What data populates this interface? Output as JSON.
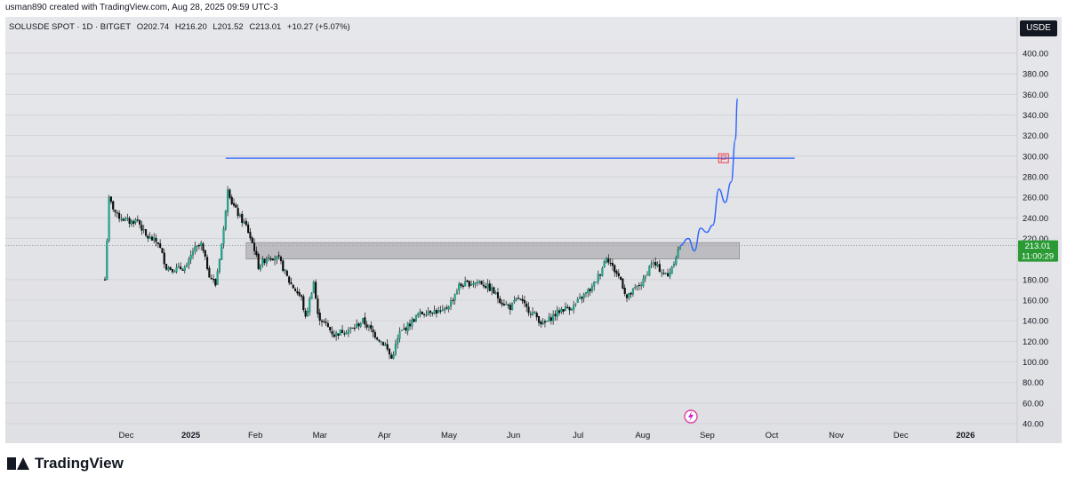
{
  "header": {
    "credit": "usman890 created with TradingView.com, Aug 28, 2025 09:59 UTC-3"
  },
  "legend": {
    "symbol": "SOLUSDE SPOT · 1D · BITGET",
    "open": "O202.74",
    "high": "H216.20",
    "low": "L201.52",
    "close": "C213.01",
    "change": "+10.27 (+5.07%)"
  },
  "currency_button": "USDE",
  "price_label": {
    "price": "213.01",
    "countdown": "11:00:29"
  },
  "footer": {
    "brand": "TradingView"
  },
  "colors": {
    "up": "#22ab94",
    "candle_body": "#0b0f0c",
    "projection": "#2962ff",
    "zone": "#9e9ea3",
    "target_flag": "#f23645",
    "price_tag": "#2a9a35"
  },
  "chart_data": {
    "type": "candlestick",
    "y_ticks": [
      40,
      60,
      80,
      100,
      120,
      140,
      160,
      180,
      220,
      240,
      260,
      280,
      300,
      320,
      340,
      360,
      380,
      400
    ],
    "ylim": [
      40,
      400
    ],
    "x_labels": [
      "Dec",
      "2025",
      "Feb",
      "Mar",
      "Apr",
      "May",
      "Jun",
      "Jul",
      "Aug",
      "Sep",
      "Oct",
      "Nov",
      "Dec",
      "2026"
    ],
    "x_start": "2024-11-20",
    "price_series": [
      [
        "2024-11-20",
        180
      ],
      [
        "2024-11-22",
        258
      ],
      [
        "2024-11-26",
        242
      ],
      [
        "2024-12-02",
        236
      ],
      [
        "2024-12-06",
        238
      ],
      [
        "2024-12-10",
        222
      ],
      [
        "2024-12-16",
        216
      ],
      [
        "2024-12-20",
        192
      ],
      [
        "2024-12-24",
        190
      ],
      [
        "2024-12-30",
        192
      ],
      [
        "2025-01-02",
        208
      ],
      [
        "2025-01-06",
        214
      ],
      [
        "2025-01-10",
        185
      ],
      [
        "2025-01-13",
        175
      ],
      [
        "2025-01-17",
        228
      ],
      [
        "2025-01-19",
        270
      ],
      [
        "2025-01-21",
        255
      ],
      [
        "2025-01-25",
        240
      ],
      [
        "2025-01-28",
        232
      ],
      [
        "2025-02-01",
        210
      ],
      [
        "2025-02-03",
        193
      ],
      [
        "2025-02-08",
        203
      ],
      [
        "2025-02-13",
        200
      ],
      [
        "2025-02-18",
        178
      ],
      [
        "2025-02-24",
        162
      ],
      [
        "2025-02-26",
        142
      ],
      [
        "2025-03-02",
        178
      ],
      [
        "2025-03-04",
        145
      ],
      [
        "2025-03-08",
        136
      ],
      [
        "2025-03-12",
        126
      ],
      [
        "2025-03-16",
        130
      ],
      [
        "2025-03-21",
        132
      ],
      [
        "2025-03-26",
        140
      ],
      [
        "2025-04-01",
        126
      ],
      [
        "2025-04-06",
        116
      ],
      [
        "2025-04-09",
        103
      ],
      [
        "2025-04-13",
        128
      ],
      [
        "2025-04-18",
        137
      ],
      [
        "2025-04-22",
        146
      ],
      [
        "2025-04-28",
        150
      ],
      [
        "2025-05-04",
        148
      ],
      [
        "2025-05-08",
        158
      ],
      [
        "2025-05-12",
        174
      ],
      [
        "2025-05-16",
        176
      ],
      [
        "2025-05-22",
        178
      ],
      [
        "2025-05-28",
        170
      ],
      [
        "2025-06-02",
        158
      ],
      [
        "2025-06-06",
        153
      ],
      [
        "2025-06-10",
        162
      ],
      [
        "2025-06-14",
        152
      ],
      [
        "2025-06-18",
        146
      ],
      [
        "2025-06-22",
        136
      ],
      [
        "2025-06-26",
        143
      ],
      [
        "2025-07-01",
        151
      ],
      [
        "2025-07-07",
        154
      ],
      [
        "2025-07-11",
        163
      ],
      [
        "2025-07-16",
        172
      ],
      [
        "2025-07-20",
        187
      ],
      [
        "2025-07-23",
        203
      ],
      [
        "2025-07-26",
        192
      ],
      [
        "2025-07-30",
        180
      ],
      [
        "2025-08-02",
        162
      ],
      [
        "2025-08-06",
        171
      ],
      [
        "2025-08-10",
        178
      ],
      [
        "2025-08-14",
        197
      ],
      [
        "2025-08-18",
        190
      ],
      [
        "2025-08-22",
        183
      ],
      [
        "2025-08-26",
        203
      ],
      [
        "2025-08-28",
        213.01
      ]
    ],
    "resistance_zone": {
      "from": "2025-01-28",
      "to": "2025-09-26",
      "low": 200,
      "high": 216
    },
    "horizontal_line": {
      "from": "2025-01-18",
      "to": "2025-10-23",
      "value": 298
    },
    "projection_path": [
      [
        "2025-08-28",
        213
      ],
      [
        "2025-09-01",
        220
      ],
      [
        "2025-09-04",
        208
      ],
      [
        "2025-09-07",
        230
      ],
      [
        "2025-09-10",
        226
      ],
      [
        "2025-09-13",
        233
      ],
      [
        "2025-09-16",
        268
      ],
      [
        "2025-09-19",
        255
      ],
      [
        "2025-09-22",
        275
      ],
      [
        "2025-09-24",
        316
      ],
      [
        "2025-09-25",
        356
      ]
    ],
    "target_flag": {
      "date": "2025-09-18",
      "value": 298
    }
  }
}
